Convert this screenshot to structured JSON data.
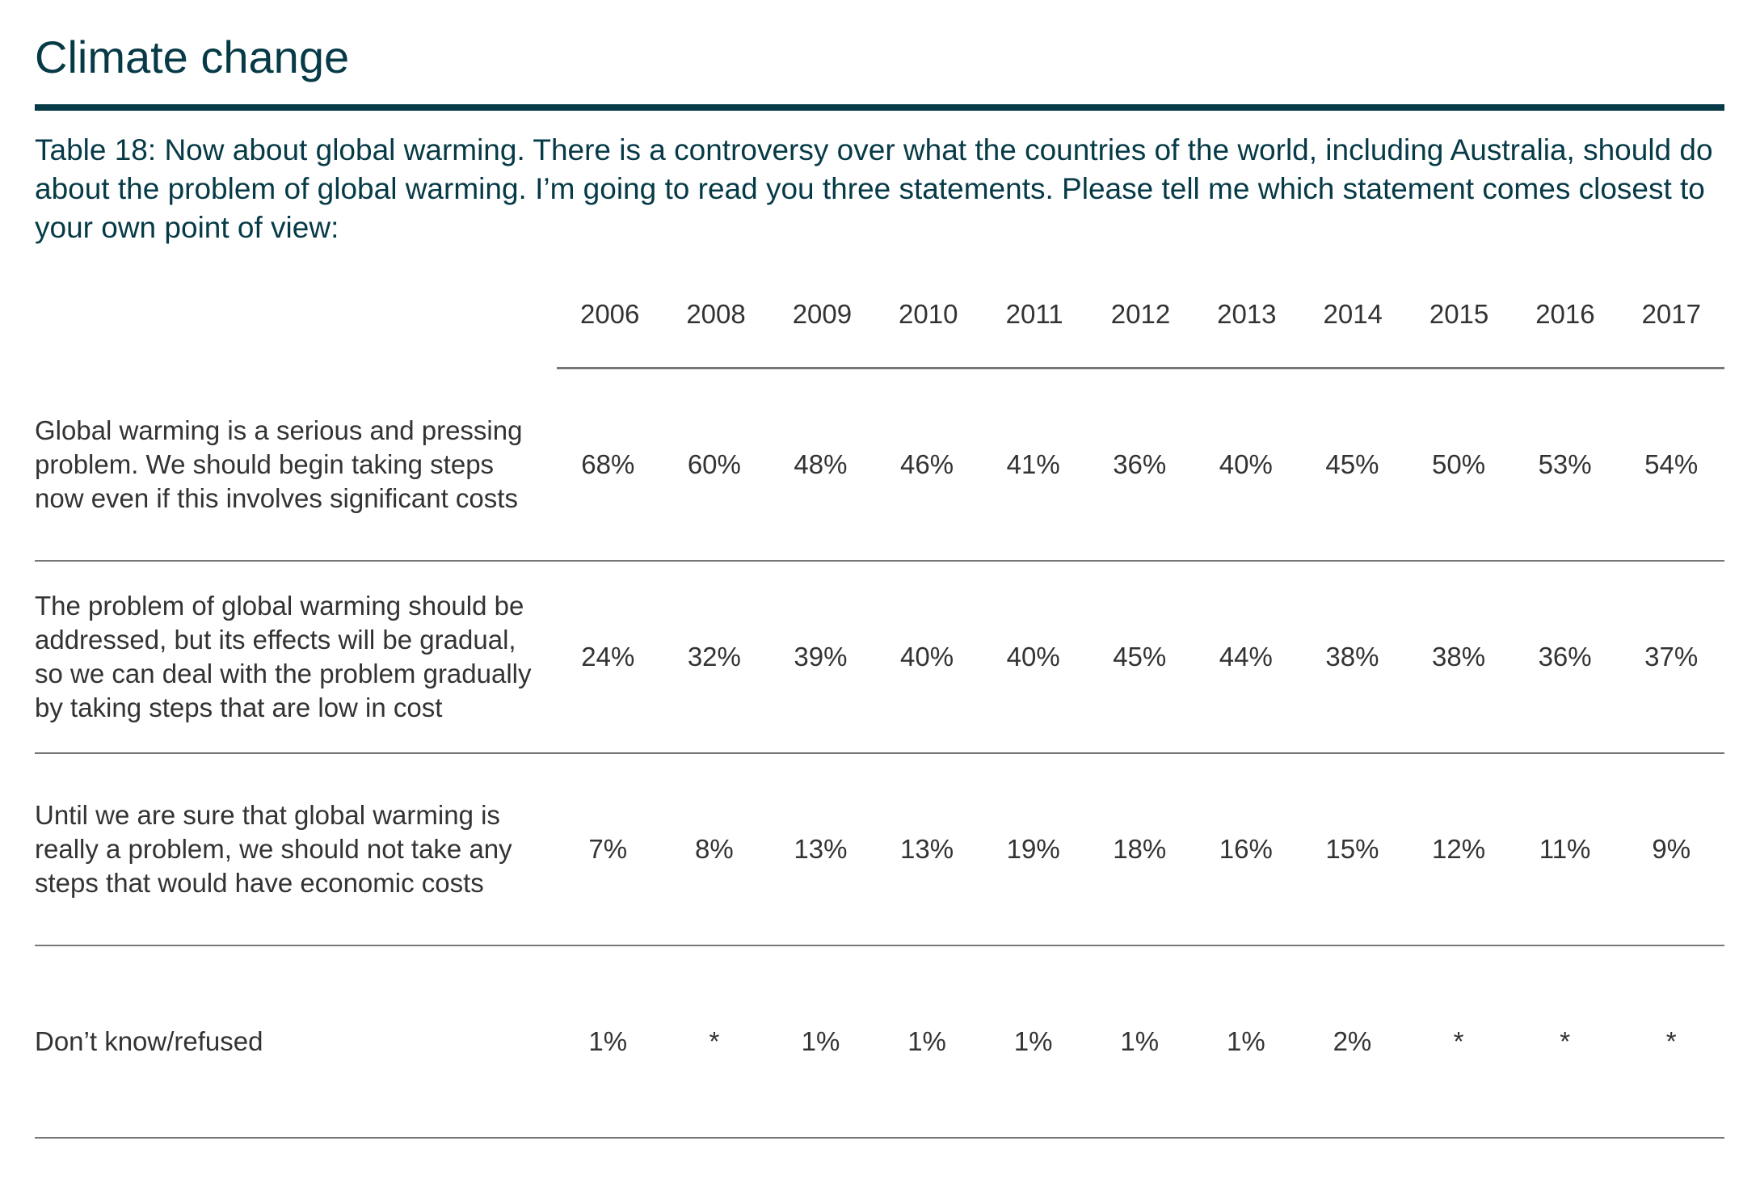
{
  "title": "Climate change",
  "question": "Table 18: Now about global warming. There is a controversy over what the countries of the world, including Australia, should do about the problem of global warming. I’m going to read you three statements. Please tell me which statement comes closest to your own point of view:",
  "colors": {
    "heading": "#063a47",
    "body": "#333333",
    "rule": "#777777"
  },
  "years": [
    "2006",
    "2008",
    "2009",
    "2010",
    "2011",
    "2012",
    "2013",
    "2014",
    "2015",
    "2016",
    "2017"
  ],
  "rows": [
    {
      "label": "Global warming is a serious and pressing problem. We should begin taking steps now even if this involves significant costs",
      "values": [
        "68%",
        "60%",
        "48%",
        "46%",
        "41%",
        "36%",
        "40%",
        "45%",
        "50%",
        "53%",
        "54%"
      ]
    },
    {
      "label": "The problem of global warming should be addressed, but its effects will be gradual, so we can deal with the problem gradually by taking steps that are low in cost",
      "values": [
        "24%",
        "32%",
        "39%",
        "40%",
        "40%",
        "45%",
        "44%",
        "38%",
        "38%",
        "36%",
        "37%"
      ]
    },
    {
      "label": "Until we are sure that global warming is really a problem, we should not take any steps that would have economic costs",
      "values": [
        "7%",
        "8%",
        "13%",
        "13%",
        "19%",
        "18%",
        "16%",
        "15%",
        "12%",
        "11%",
        "9%"
      ]
    },
    {
      "label": "Don’t know/refused",
      "values": [
        "1%",
        "*",
        "1%",
        "1%",
        "1%",
        "1%",
        "1%",
        "2%",
        "*",
        "*",
        "*"
      ]
    }
  ]
}
